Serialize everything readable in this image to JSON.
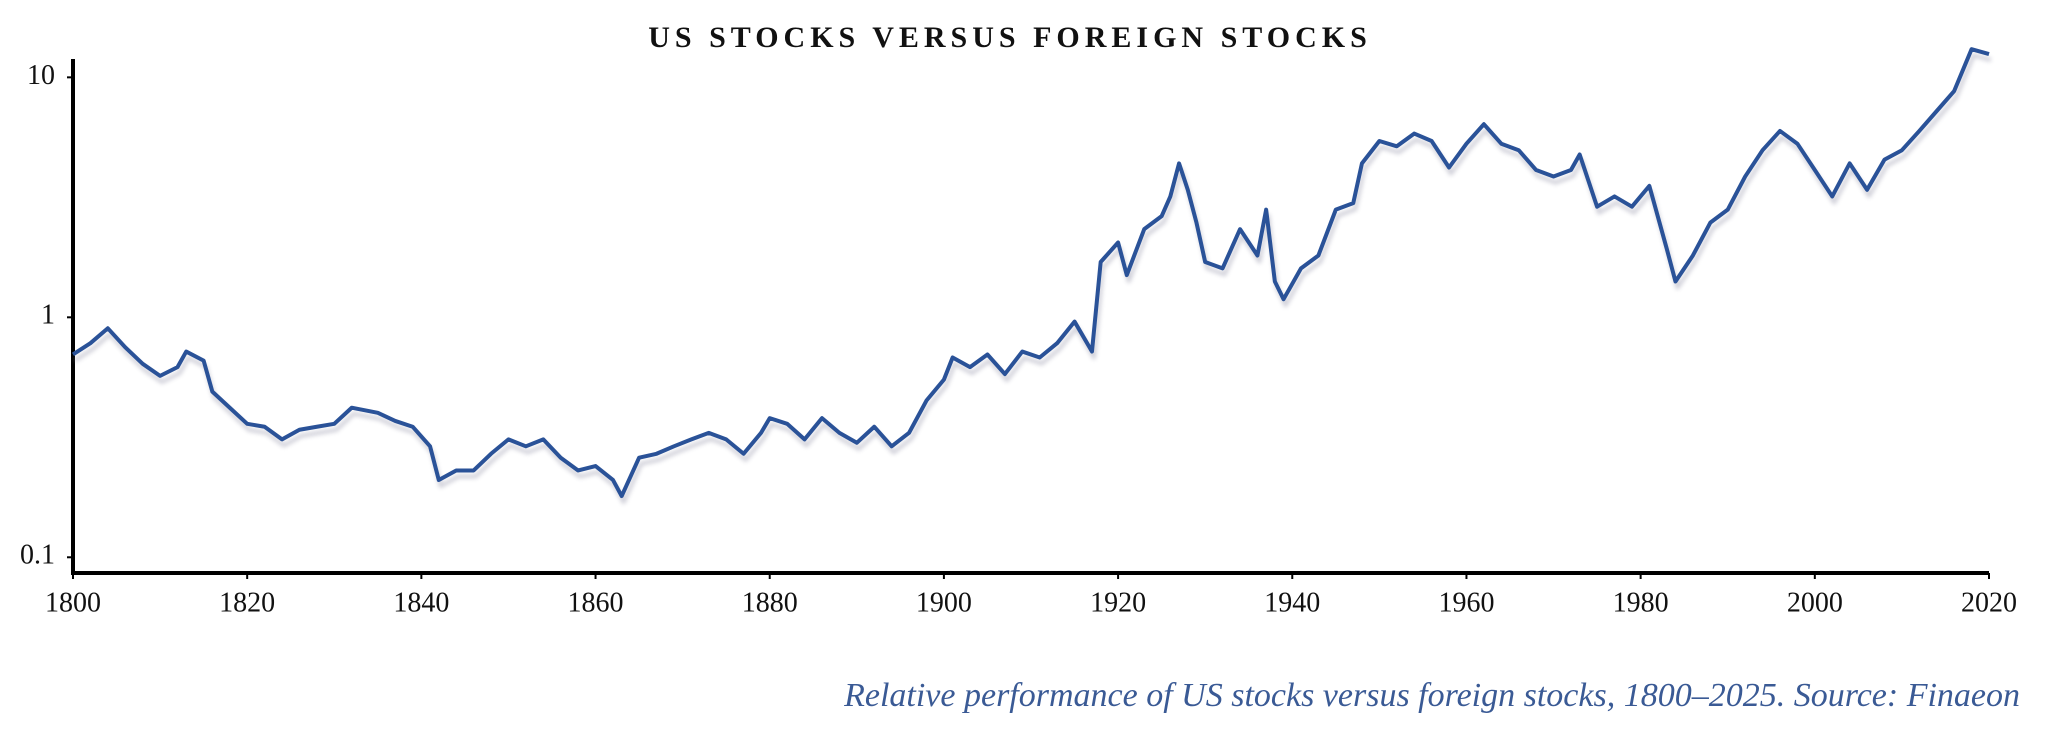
{
  "chart_data": {
    "type": "line",
    "title": "US STOCKS VERSUS FOREIGN STOCKS",
    "caption": "Relative performance of US stocks versus foreign stocks, 1800–2025. Source: Finaeon",
    "yscale": "log",
    "x": [
      1800,
      1802,
      1804,
      1806,
      1808,
      1810,
      1812,
      1813,
      1815,
      1816,
      1818,
      1820,
      1822,
      1824,
      1826,
      1828,
      1830,
      1832,
      1835,
      1837,
      1839,
      1841,
      1842,
      1844,
      1846,
      1848,
      1850,
      1852,
      1854,
      1856,
      1858,
      1860,
      1862,
      1863,
      1865,
      1867,
      1869,
      1871,
      1873,
      1875,
      1877,
      1879,
      1880,
      1882,
      1884,
      1886,
      1888,
      1890,
      1892,
      1894,
      1896,
      1898,
      1900,
      1901,
      1903,
      1905,
      1907,
      1909,
      1911,
      1913,
      1915,
      1917,
      1918,
      1920,
      1921,
      1923,
      1925,
      1926,
      1927,
      1928,
      1929,
      1930,
      1932,
      1934,
      1936,
      1937,
      1938,
      1939,
      1941,
      1943,
      1945,
      1947,
      1948,
      1950,
      1952,
      1954,
      1956,
      1958,
      1960,
      1962,
      1964,
      1966,
      1968,
      1970,
      1972,
      1973,
      1975,
      1977,
      1979,
      1981,
      1983,
      1984,
      1986,
      1988,
      1990,
      1992,
      1994,
      1996,
      1998,
      2000,
      2002,
      2004,
      2006,
      2008,
      2010,
      2012,
      2014,
      2016,
      2018,
      2020
    ],
    "series": [
      {
        "name": "US vs foreign",
        "color": "#2a5298",
        "values": [
          0.7,
          0.78,
          0.9,
          0.75,
          0.64,
          0.57,
          0.62,
          0.72,
          0.66,
          0.49,
          0.42,
          0.36,
          0.35,
          0.31,
          0.34,
          0.35,
          0.36,
          0.42,
          0.4,
          0.37,
          0.35,
          0.29,
          0.21,
          0.23,
          0.23,
          0.27,
          0.31,
          0.29,
          0.31,
          0.26,
          0.23,
          0.24,
          0.21,
          0.18,
          0.26,
          0.27,
          0.29,
          0.31,
          0.33,
          0.31,
          0.27,
          0.33,
          0.38,
          0.36,
          0.31,
          0.38,
          0.33,
          0.3,
          0.35,
          0.29,
          0.33,
          0.45,
          0.55,
          0.68,
          0.62,
          0.7,
          0.58,
          0.72,
          0.68,
          0.78,
          0.96,
          0.72,
          1.7,
          2.05,
          1.5,
          2.33,
          2.64,
          3.19,
          4.38,
          3.4,
          2.48,
          1.7,
          1.6,
          2.33,
          1.81,
          2.81,
          1.41,
          1.19,
          1.6,
          1.81,
          2.81,
          2.99,
          4.38,
          5.43,
          5.16,
          5.83,
          5.43,
          4.21,
          5.29,
          6.38,
          5.29,
          4.97,
          4.11,
          3.86,
          4.11,
          4.77,
          2.89,
          3.19,
          2.89,
          3.53,
          1.93,
          1.41,
          1.81,
          2.48,
          2.81,
          3.86,
          4.97,
          5.98,
          5.29,
          4.11,
          3.19,
          4.38,
          3.4,
          4.54,
          4.97,
          5.98,
          7.24,
          8.77,
          13.1,
          12.5
        ]
      }
    ],
    "xlim": [
      1800,
      2020
    ],
    "xticks": [
      1800,
      1820,
      1840,
      1860,
      1880,
      1900,
      1920,
      1940,
      1960,
      1980,
      2000,
      2020
    ],
    "ylim": [
      0.086,
      13
    ],
    "yticks": [
      0.1,
      1,
      10
    ]
  }
}
